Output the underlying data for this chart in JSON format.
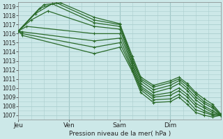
{
  "title": "Pression niveau de la mer( hPa )",
  "ylabel_vals": [
    1007,
    1008,
    1009,
    1010,
    1011,
    1012,
    1013,
    1014,
    1015,
    1016,
    1017,
    1018,
    1019
  ],
  "ylim": [
    1006.5,
    1019.5
  ],
  "xlim": [
    0,
    96
  ],
  "day_ticks": [
    0,
    24,
    48,
    72
  ],
  "day_labels": [
    "Jeu",
    "Ven",
    "Sam",
    "Dim"
  ],
  "bg_color": "#cce8e8",
  "grid_color": "#aacece",
  "line_color": "#2a6a2a",
  "lines": [
    [
      0,
      1016.3,
      12,
      1019.2,
      20,
      1019.4,
      36,
      1017.8,
      48,
      1017.1,
      54,
      1013.5,
      58,
      1011.2,
      64,
      1010.3,
      72,
      1010.8,
      76,
      1011.2,
      80,
      1010.5,
      84,
      1009.5,
      88,
      1008.8,
      92,
      1008.2,
      96,
      1007.1
    ],
    [
      0,
      1016.3,
      10,
      1018.8,
      18,
      1019.4,
      36,
      1017.5,
      48,
      1017.0,
      54,
      1013.2,
      58,
      1011.0,
      64,
      1010.1,
      72,
      1010.6,
      76,
      1011.0,
      80,
      1010.3,
      84,
      1009.3,
      88,
      1008.5,
      92,
      1008.0,
      96,
      1007.0
    ],
    [
      0,
      1016.3,
      8,
      1018.2,
      16,
      1019.3,
      36,
      1017.2,
      48,
      1016.8,
      54,
      1013.0,
      58,
      1010.8,
      64,
      1009.8,
      72,
      1010.3,
      76,
      1010.8,
      80,
      1010.0,
      84,
      1009.0,
      88,
      1008.3,
      92,
      1007.8,
      96,
      1007.0
    ],
    [
      0,
      1016.3,
      6,
      1017.5,
      14,
      1018.5,
      36,
      1016.8,
      48,
      1016.5,
      54,
      1012.7,
      58,
      1010.5,
      64,
      1009.5,
      72,
      1010.0,
      76,
      1010.5,
      80,
      1009.7,
      84,
      1008.7,
      88,
      1008.0,
      92,
      1007.5,
      96,
      1007.0
    ],
    [
      0,
      1016.3,
      4,
      1016.8,
      36,
      1016.0,
      48,
      1016.0,
      54,
      1012.5,
      58,
      1010.2,
      64,
      1009.2,
      72,
      1009.5,
      76,
      1010.0,
      80,
      1009.3,
      84,
      1008.3,
      88,
      1007.8,
      92,
      1007.3,
      96,
      1007.0
    ],
    [
      0,
      1016.3,
      2,
      1016.2,
      36,
      1015.2,
      48,
      1015.5,
      54,
      1012.2,
      58,
      1010.0,
      64,
      1009.0,
      72,
      1009.2,
      76,
      1009.7,
      80,
      1009.0,
      84,
      1008.0,
      88,
      1007.5,
      92,
      1007.1,
      96,
      1007.0
    ],
    [
      0,
      1016.3,
      2,
      1016.0,
      36,
      1014.5,
      48,
      1015.0,
      54,
      1012.0,
      58,
      1009.8,
      64,
      1008.7,
      72,
      1008.8,
      76,
      1009.3,
      80,
      1008.6,
      84,
      1007.6,
      88,
      1007.3,
      92,
      1007.0,
      96,
      1007.0
    ],
    [
      0,
      1016.3,
      2,
      1015.8,
      36,
      1013.8,
      48,
      1014.5,
      54,
      1011.8,
      58,
      1009.5,
      64,
      1008.4,
      72,
      1008.5,
      76,
      1009.0,
      80,
      1008.2,
      84,
      1007.3,
      88,
      1007.0,
      92,
      1006.8,
      96,
      1007.0
    ]
  ]
}
